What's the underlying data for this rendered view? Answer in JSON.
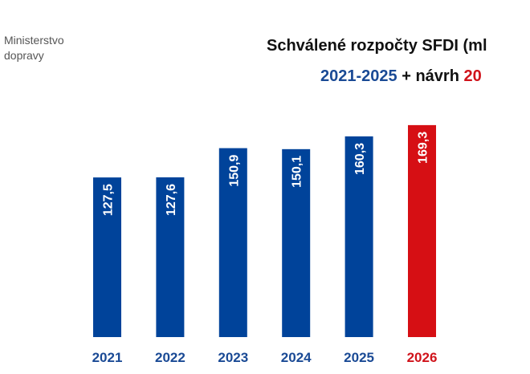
{
  "logo": {
    "line1": "Ministerstvo",
    "line2": "dopravy"
  },
  "chart_data": {
    "type": "bar",
    "title": "Schválené rozpočty SFDI (ml",
    "subtitle": {
      "part1": "2021-2025",
      "part2": " + návrh ",
      "part3": "20"
    },
    "categories": [
      "2021",
      "2022",
      "2023",
      "2024",
      "2025",
      "2026"
    ],
    "values": [
      127.5,
      127.6,
      150.9,
      150.1,
      160.3,
      169.3
    ],
    "labels": [
      "127,5",
      "127,6",
      "150,9",
      "150,1",
      "160,3",
      "169,3"
    ],
    "colors": [
      "#00439a",
      "#00439a",
      "#00439a",
      "#00439a",
      "#00439a",
      "#d60f14"
    ],
    "label_colors": [
      "#1a4a95",
      "#1a4a95",
      "#1a4a95",
      "#1a4a95",
      "#1a4a95",
      "#d0131b"
    ],
    "xlabel": "",
    "ylabel": "",
    "ylim": [
      0,
      175
    ],
    "grid": false
  }
}
